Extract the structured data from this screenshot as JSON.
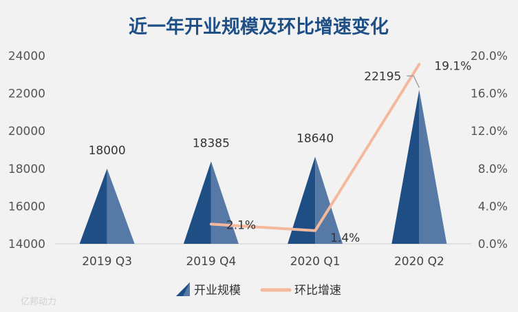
{
  "chart_data": {
    "type": "bar",
    "title": "近一年开业规模及环比增速变化",
    "categories": [
      "2019 Q3",
      "2019 Q4",
      "2020 Q1",
      "2020 Q2"
    ],
    "series": [
      {
        "name": "开业规模",
        "kind": "triangle-bar",
        "axis": "left",
        "values": [
          18000,
          18385,
          18640,
          22195
        ],
        "labels": [
          "18000",
          "18385",
          "18640",
          "22195"
        ],
        "color": "#1f4e85",
        "color_light": "#5679a6"
      },
      {
        "name": "环比增速",
        "kind": "line",
        "axis": "right",
        "values": [
          null,
          2.1,
          1.4,
          19.1
        ],
        "labels": [
          "",
          "2.1%",
          "1.4%",
          "19.1%"
        ],
        "color": "#f4b99c"
      }
    ],
    "y_left": {
      "min": 14000,
      "max": 24000,
      "ticks": [
        14000,
        16000,
        18000,
        20000,
        22000,
        24000
      ],
      "tick_labels": [
        "14000",
        "16000",
        "18000",
        "20000",
        "22000",
        "24000"
      ]
    },
    "y_right": {
      "min": 0,
      "max": 20,
      "ticks": [
        0,
        4,
        8,
        12,
        16,
        20
      ],
      "tick_labels": [
        "0.0%",
        "4.0%",
        "8.0%",
        "12.0%",
        "16.0%",
        "20.0%"
      ]
    },
    "grid": false,
    "legend": "bottom"
  },
  "watermark": "亿邦动力"
}
